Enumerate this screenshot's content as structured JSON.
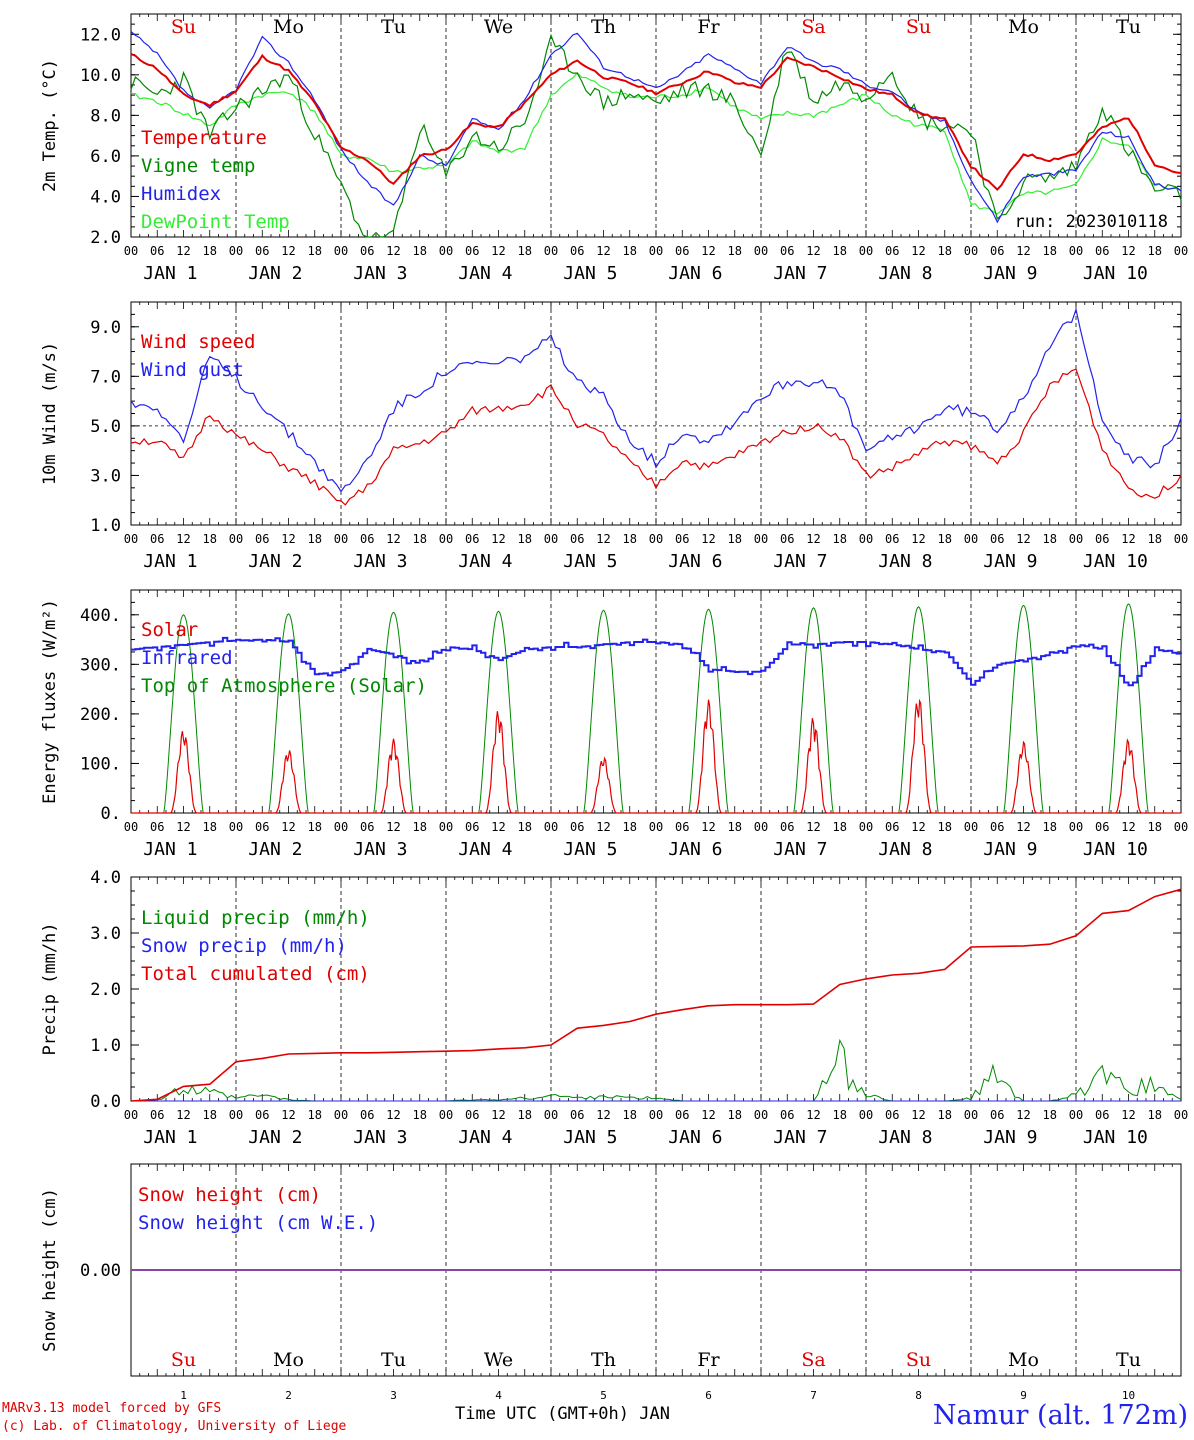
{
  "run_label": "run: 2023010118",
  "days": [
    "Su",
    "Mo",
    "Tu",
    "We",
    "Th",
    "Fr",
    "Sa",
    "Su",
    "Mo",
    "Tu"
  ],
  "day_colors": [
    "#e00000",
    "#000000",
    "#000000",
    "#000000",
    "#000000",
    "#000000",
    "#e00000",
    "#e00000",
    "#000000",
    "#000000"
  ],
  "dates": [
    "JAN  1",
    "JAN  2",
    "JAN  3",
    "JAN  4",
    "JAN  5",
    "JAN  6",
    "JAN  7",
    "JAN  8",
    "JAN  9",
    "JAN 10"
  ],
  "day_numbers": [
    "1",
    "2",
    "3",
    "4",
    "5",
    "6",
    "7",
    "8",
    "9",
    "10"
  ],
  "hour_ticks": [
    "00",
    "06",
    "12",
    "18"
  ],
  "final_hour": "00",
  "footer": {
    "model": "MARv3.13 model forced by GFS",
    "credit": "(c) Lab. of Climatology, University of Liege",
    "xlabel": "Time UTC (GMT+0h) JAN",
    "station": "Namur (alt. 172m)"
  },
  "colors": {
    "red": "#e00000",
    "green": "#008800",
    "blue": "#2222ee",
    "lightgreen": "#33ee33",
    "purple": "#8844aa"
  },
  "chart_data": [
    {
      "type": "line",
      "ylabel": "2m Temp. (°C)",
      "ylim": [
        2,
        13
      ],
      "yticks": [
        "2.0",
        "4.0",
        "6.0",
        "8.0",
        "10.0",
        "12.0"
      ],
      "grid": "vertical dashed at midnight",
      "legend_position": "left",
      "x_hours": [
        0,
        6,
        12,
        18,
        24,
        30,
        36,
        42,
        48,
        54,
        60,
        66,
        72,
        78,
        84,
        90,
        96,
        102,
        108,
        114,
        120,
        126,
        132,
        138,
        144,
        150,
        156,
        162,
        168,
        174,
        180,
        186,
        192,
        198,
        204,
        210,
        216,
        222,
        228,
        234,
        240
      ],
      "series": [
        {
          "name": "Temperature",
          "color": "#e00000",
          "values": [
            11.0,
            10.3,
            9.0,
            8.5,
            9.2,
            10.9,
            10.2,
            8.6,
            6.4,
            5.8,
            4.6,
            6.0,
            6.3,
            7.6,
            7.4,
            8.6,
            10.0,
            10.7,
            9.9,
            9.6,
            9.1,
            9.6,
            10.2,
            9.6,
            9.4,
            10.8,
            10.4,
            9.9,
            9.3,
            9.0,
            8.1,
            7.8,
            5.5,
            4.3,
            6.1,
            5.8,
            6.1,
            7.4,
            7.9,
            5.6,
            5.1
          ]
        },
        {
          "name": "Vigne temp",
          "color": "#008800",
          "values": [
            9.6,
            9.0,
            9.8,
            7.0,
            8.4,
            9.2,
            10.0,
            7.1,
            4.5,
            1.8,
            2.0,
            7.5,
            5.0,
            7.0,
            6.4,
            7.7,
            11.5,
            10.1,
            8.6,
            9.1,
            8.6,
            9.2,
            9.3,
            8.6,
            6.0,
            11.5,
            8.7,
            9.6,
            9.0,
            10.3,
            7.8,
            7.5,
            7.4,
            2.5,
            4.8,
            4.9,
            5.5,
            8.5,
            6.2,
            4.3,
            4.1
          ]
        },
        {
          "name": "Humidex",
          "color": "#2222ee",
          "values": [
            12.1,
            11.0,
            9.2,
            8.3,
            9.3,
            11.8,
            10.6,
            8.8,
            6.3,
            4.7,
            3.5,
            6.0,
            5.5,
            7.8,
            7.3,
            8.8,
            11.0,
            12.1,
            10.4,
            9.9,
            9.3,
            10.1,
            11.0,
            10.3,
            9.6,
            11.4,
            10.6,
            10.3,
            9.5,
            9.2,
            8.1,
            7.7,
            4.8,
            2.8,
            5.0,
            5.1,
            5.3,
            7.2,
            6.9,
            4.6,
            4.3
          ]
        },
        {
          "name": "DewPoint Temp",
          "color": "#33ee33",
          "values": [
            9.0,
            8.7,
            8.1,
            7.5,
            8.5,
            9.0,
            9.2,
            8.2,
            6.0,
            5.9,
            5.2,
            5.4,
            5.5,
            6.7,
            6.2,
            6.4,
            9.0,
            10.0,
            9.4,
            8.9,
            8.9,
            9.0,
            9.4,
            8.4,
            7.8,
            8.1,
            8.0,
            8.5,
            9.0,
            8.0,
            7.5,
            7.3,
            3.6,
            3.2,
            4.1,
            4.2,
            4.5,
            6.8,
            6.5,
            4.5,
            4.4
          ]
        }
      ]
    },
    {
      "type": "line",
      "ylabel": "10m Wind (m/s)",
      "ylim": [
        1,
        10
      ],
      "yticks": [
        "1.0",
        "3.0",
        "5.0",
        "7.0",
        "9.0"
      ],
      "reference_line": 5,
      "legend_position": "left",
      "x_hours": [
        0,
        6,
        12,
        18,
        24,
        30,
        36,
        42,
        48,
        54,
        60,
        66,
        72,
        78,
        84,
        90,
        96,
        102,
        108,
        114,
        120,
        126,
        132,
        138,
        144,
        150,
        156,
        162,
        168,
        174,
        180,
        186,
        192,
        198,
        204,
        210,
        216,
        222,
        228,
        234,
        240
      ],
      "series": [
        {
          "name": "Wind speed",
          "color": "#e00000",
          "values": [
            4.4,
            4.4,
            3.6,
            5.5,
            4.6,
            4.0,
            3.3,
            2.7,
            1.8,
            2.5,
            4.0,
            4.3,
            4.7,
            5.6,
            5.7,
            5.9,
            6.5,
            5.1,
            4.6,
            3.5,
            2.6,
            3.6,
            3.3,
            3.8,
            4.3,
            4.8,
            5.0,
            4.6,
            3.0,
            3.3,
            3.9,
            4.4,
            4.2,
            3.5,
            4.7,
            6.6,
            7.3,
            4.1,
            2.5,
            2.1,
            3.0
          ]
        },
        {
          "name": "Wind gust",
          "color": "#2222ee",
          "values": [
            5.9,
            5.8,
            4.4,
            7.8,
            6.9,
            5.9,
            4.7,
            3.6,
            2.3,
            3.6,
            5.7,
            6.4,
            7.2,
            7.5,
            7.5,
            7.8,
            8.5,
            6.7,
            6.2,
            4.5,
            3.5,
            4.8,
            4.4,
            5.2,
            6.2,
            6.8,
            6.8,
            6.3,
            4.0,
            4.5,
            5.0,
            5.7,
            5.6,
            4.9,
            6.2,
            8.3,
            9.5,
            5.4,
            3.7,
            3.4,
            5.2
          ]
        }
      ]
    },
    {
      "type": "line",
      "ylabel": "Energy fluxes (W/m²)",
      "ylim": [
        0,
        450
      ],
      "yticks": [
        "0.",
        "100.",
        "200.",
        "300.",
        "400."
      ],
      "legend_position": "left",
      "series": [
        {
          "name": "Solar",
          "color": "#e00000",
          "daily_peak_values": [
            170,
            130,
            150,
            210,
            115,
            230,
            195,
            240,
            145,
            150
          ]
        },
        {
          "name": "Infrared",
          "color": "#2222ee",
          "x_hours": [
            0,
            6,
            12,
            18,
            24,
            30,
            36,
            42,
            48,
            54,
            60,
            66,
            72,
            78,
            84,
            90,
            96,
            102,
            108,
            114,
            120,
            126,
            132,
            138,
            144,
            150,
            156,
            162,
            168,
            174,
            180,
            186,
            192,
            198,
            204,
            210,
            216,
            222,
            228,
            234,
            240
          ],
          "values": [
            330,
            335,
            340,
            345,
            348,
            350,
            345,
            280,
            285,
            330,
            320,
            300,
            335,
            330,
            310,
            330,
            335,
            335,
            340,
            345,
            345,
            340,
            290,
            285,
            285,
            340,
            340,
            345,
            345,
            340,
            330,
            325,
            260,
            300,
            310,
            320,
            340,
            330,
            250,
            330,
            320
          ]
        },
        {
          "name": "Top of Atmosphere (Solar)",
          "color": "#008800",
          "daily_peak_values": [
            400,
            402,
            405,
            407,
            409,
            411,
            414,
            416,
            419,
            422
          ]
        }
      ]
    },
    {
      "type": "line",
      "ylabel": "Precip (mm/h)",
      "ylim": [
        0,
        4
      ],
      "yticks": [
        "0.0",
        "1.0",
        "2.0",
        "3.0",
        "4.0"
      ],
      "legend_position": "left",
      "x_hours": [
        0,
        6,
        12,
        18,
        24,
        30,
        36,
        42,
        48,
        54,
        60,
        66,
        72,
        78,
        84,
        90,
        96,
        102,
        108,
        114,
        120,
        126,
        132,
        138,
        144,
        150,
        156,
        162,
        168,
        174,
        180,
        186,
        192,
        198,
        204,
        210,
        216,
        222,
        228,
        234,
        240
      ],
      "series": [
        {
          "name": "Liquid precip (mm/h)",
          "color": "#008800",
          "values": [
            0,
            0.02,
            0.2,
            0.15,
            0.05,
            0.1,
            0.02,
            0,
            0,
            0,
            0,
            0,
            0,
            0.02,
            0.02,
            0.05,
            0.1,
            0.05,
            0.1,
            0.05,
            0.05,
            0,
            0,
            0,
            0,
            0,
            0,
            0.7,
            0.1,
            0,
            0,
            0,
            0.05,
            0.5,
            0,
            0,
            0.1,
            0.4,
            0.2,
            0.3,
            0.02
          ]
        },
        {
          "name": "Snow precip (mm/h)",
          "color": "#2222ee",
          "values": [
            0,
            0,
            0,
            0,
            0,
            0,
            0,
            0,
            0,
            0,
            0,
            0,
            0,
            0,
            0,
            0,
            0,
            0,
            0,
            0,
            0,
            0,
            0,
            0,
            0,
            0,
            0,
            0,
            0,
            0,
            0,
            0,
            0,
            0,
            0,
            0,
            0,
            0,
            0,
            0,
            0
          ]
        },
        {
          "name": "Total cumulated (cm)",
          "color": "#e00000",
          "values": [
            0,
            0.03,
            0.26,
            0.3,
            0.7,
            0.76,
            0.84,
            0.85,
            0.86,
            0.86,
            0.87,
            0.88,
            0.89,
            0.9,
            0.93,
            0.95,
            1.0,
            1.3,
            1.35,
            1.42,
            1.55,
            1.63,
            1.7,
            1.72,
            1.72,
            1.72,
            1.73,
            2.08,
            2.18,
            2.25,
            2.28,
            2.35,
            2.75,
            2.76,
            2.77,
            2.8,
            2.95,
            3.35,
            3.4,
            3.65,
            3.78
          ]
        }
      ]
    },
    {
      "type": "line",
      "ylabel": "Snow height (cm)",
      "yticks": [
        "0.00"
      ],
      "legend_position": "left",
      "series": [
        {
          "name": "Snow height (cm)",
          "color": "#e00000",
          "values": [
            0,
            0
          ]
        },
        {
          "name": "Snow height (cm W.E.)",
          "color": "#2222ee",
          "values": [
            0,
            0
          ]
        }
      ]
    }
  ]
}
